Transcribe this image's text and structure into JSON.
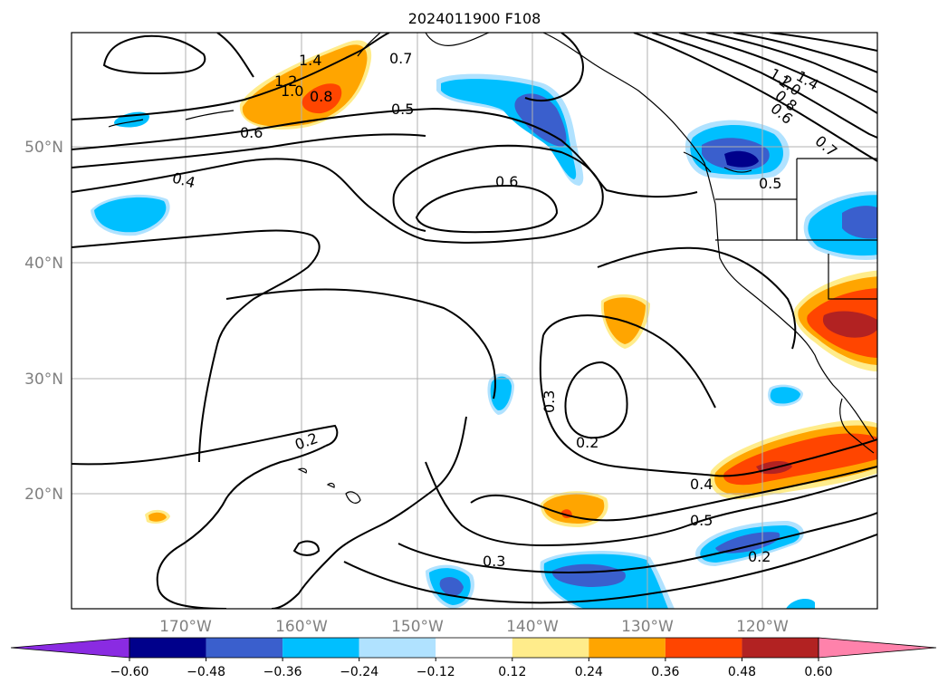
{
  "title": "2024011900 F108",
  "lon_ticks": [
    "170°W",
    "160°W",
    "150°W",
    "140°W",
    "130°W",
    "120°W"
  ],
  "lat_ticks": [
    "50°N",
    "40°N",
    "30°N",
    "20°N"
  ],
  "contour_labels": [
    "1.4",
    "1.2",
    "1.0",
    "0.8",
    "0.7",
    "0.6",
    "0.5",
    "0.4",
    "0.6",
    "0.5",
    "0.7",
    "0.6",
    "0.8",
    "1.0",
    "1.2",
    "1.4",
    "0.5",
    "0.3",
    "0.2",
    "0.2",
    "0.4",
    "0.5",
    "0.3",
    "0.2"
  ],
  "colorbar": {
    "ticks": [
      "−0.60",
      "−0.48",
      "−0.36",
      "−0.24",
      "−0.12",
      "0.12",
      "0.24",
      "0.36",
      "0.48",
      "0.60"
    ],
    "colors": [
      "#8a2be2",
      "#00008b",
      "#3a5fcd",
      "#00bfff",
      "#b0e2ff",
      "#ffffff",
      "#ffec8b",
      "#ffa500",
      "#ff4500",
      "#b22222",
      "#ff82ab"
    ]
  }
}
